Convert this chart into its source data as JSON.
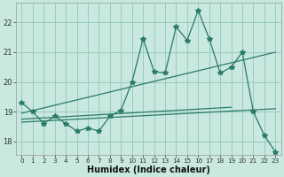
{
  "xlabel": "Humidex (Indice chaleur)",
  "background_color": "#c8e8e0",
  "grid_color": "#99ccbb",
  "line_color": "#2a7a6a",
  "xlim": [
    -0.5,
    23.5
  ],
  "ylim": [
    17.55,
    22.65
  ],
  "yticks": [
    18,
    19,
    20,
    21,
    22
  ],
  "xticks": [
    0,
    1,
    2,
    3,
    4,
    5,
    6,
    7,
    8,
    9,
    10,
    11,
    12,
    13,
    14,
    15,
    16,
    17,
    18,
    19,
    20,
    21,
    22,
    23
  ],
  "main_x": [
    0,
    1,
    2,
    3,
    4,
    5,
    6,
    7,
    8,
    9,
    10,
    11,
    12,
    13,
    14,
    15,
    16,
    17,
    18,
    19,
    20,
    21,
    22,
    23
  ],
  "main_y": [
    19.3,
    19.0,
    18.6,
    18.85,
    18.6,
    18.35,
    18.45,
    18.35,
    18.85,
    19.05,
    20.0,
    21.45,
    20.35,
    20.3,
    21.85,
    21.4,
    22.4,
    21.45,
    20.3,
    20.5,
    21.0,
    19.0,
    18.2,
    17.65
  ],
  "trend1_x": [
    0,
    23
  ],
  "trend1_y": [
    18.95,
    21.0
  ],
  "trend2_x": [
    0,
    19
  ],
  "trend2_y": [
    18.75,
    19.15
  ],
  "trend3_x": [
    0,
    23
  ],
  "trend3_y": [
    18.65,
    19.1
  ]
}
